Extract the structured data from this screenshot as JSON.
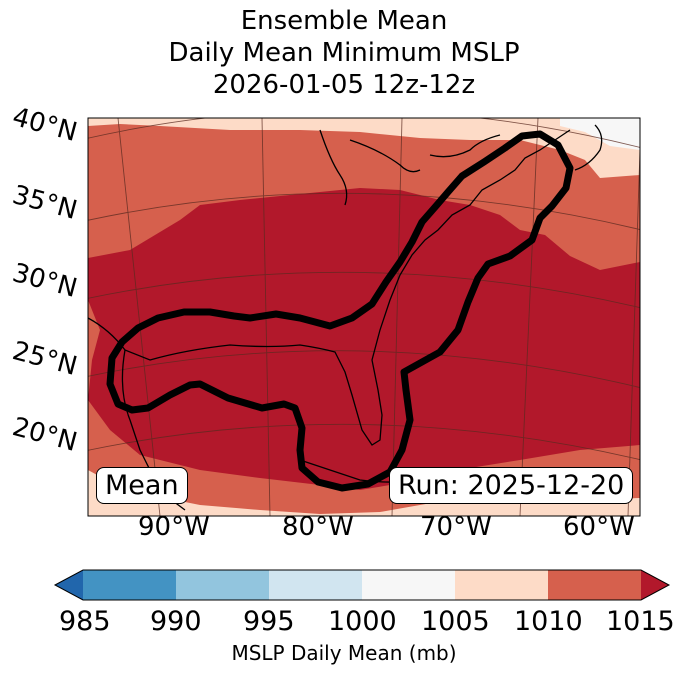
{
  "title_lines": [
    "Ensemble Mean",
    "Daily Mean Minimum MSLP",
    "2026-01-05 12z-12z"
  ],
  "map": {
    "lat_labels": [
      "40°N",
      "35°N",
      "30°N",
      "25°N",
      "20°N"
    ],
    "lon_labels": [
      "90°W",
      "80°W",
      "70°W",
      "60°W"
    ],
    "mean_label": "Mean",
    "run_label": "Run: 2025-12-20"
  },
  "colorbar": {
    "label": "MSLP Daily Mean (mb)",
    "ticks": [
      "985",
      "990",
      "995",
      "1000",
      "1005",
      "1010",
      "1015"
    ],
    "colors": [
      "#4393c3",
      "#92c5de",
      "#d1e5f0",
      "#f7f7f7",
      "#fddbc7",
      "#d6604d"
    ],
    "under_color": "#2166ac",
    "over_color": "#b2182b"
  },
  "field_colors": {
    "low": "#b2182b",
    "mid": "#d6604d",
    "high": "#fddbc7",
    "top": "#f7f7f7"
  }
}
